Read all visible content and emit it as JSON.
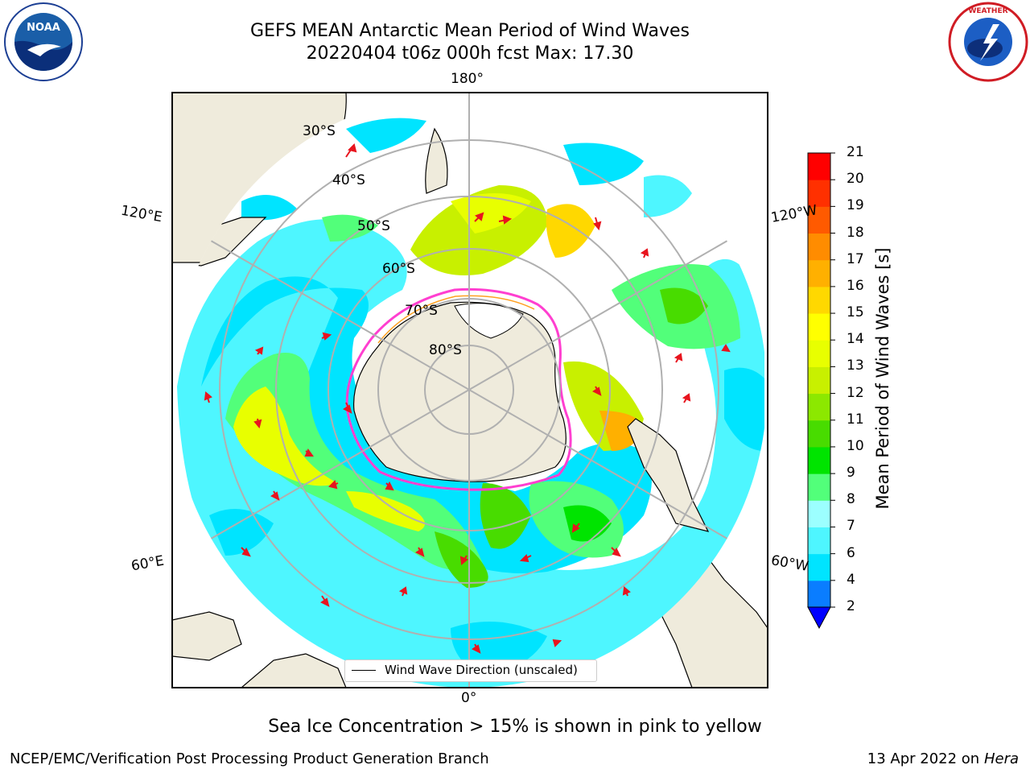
{
  "title": {
    "line1": "GEFS MEAN Antarctic Mean Period of Wind Waves",
    "line2": "20220404 t06z 000h fcst   Max: 17.30"
  },
  "map": {
    "projection": "south polar stereographic",
    "meridian_labels": {
      "top": "180°",
      "bottom": "0°",
      "upper_left": "120°E",
      "upper_right": "120°W",
      "lower_left": "60°E",
      "lower_right": "60°W"
    },
    "latitude_labels": [
      "30°S",
      "40°S",
      "50°S",
      "60°S",
      "70°S",
      "80°S"
    ],
    "legend_label": "Wind Wave Direction (unscaled)",
    "colors": {
      "land": "#efebdc",
      "ocean_no_data": "#ffffff",
      "grid": "#b0b0b0",
      "arrow": "#e8141e",
      "ice_edge": "#ff3fd0"
    }
  },
  "colorbar": {
    "label": "Mean Period of Wind Waves [s]",
    "ticks": [
      "2",
      "4",
      "6",
      "7",
      "8",
      "9",
      "10",
      "11",
      "12",
      "13",
      "14",
      "15",
      "16",
      "17",
      "18",
      "19",
      "20",
      "21"
    ],
    "colors": [
      "#0a7dff",
      "#00e4ff",
      "#4ef6ff",
      "#9cffff",
      "#52ff7a",
      "#00e400",
      "#48dc00",
      "#8ce800",
      "#c8f000",
      "#e8ff00",
      "#ffff00",
      "#ffd800",
      "#ffb000",
      "#ff8c00",
      "#ff5a00",
      "#ff3000",
      "#ff0000"
    ],
    "extend_color": "#0000ff"
  },
  "notes": {
    "sea_ice": "Sea Ice Concentration > 15% is shown in pink to yellow",
    "footer_left": "NCEP/EMC/Verification Post Processing Product Generation Branch",
    "footer_date": "13 Apr 2022 on ",
    "footer_host": "Hera"
  },
  "logos": {
    "left": "NOAA",
    "right": "NATIONAL WEATHER SERVICE"
  }
}
